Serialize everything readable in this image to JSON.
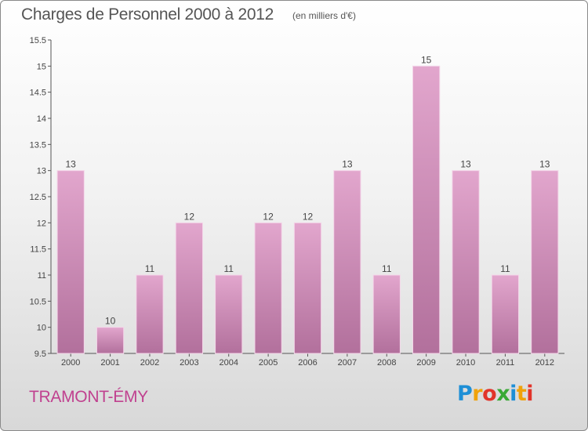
{
  "header": {
    "title": "Charges de Personnel 2000 à 2012",
    "subtitle": "(en milliers d'€)"
  },
  "footer": {
    "place": "TRAMONT-ÉMY",
    "logo_letters": [
      "P",
      "r",
      "o",
      "x",
      "i",
      "t",
      "i"
    ]
  },
  "colors": {
    "bar_top": "#e2a6cd",
    "bar_bottom": "#b2709c",
    "bar_edge": "#f4d6e9",
    "place_text": "#c0418f"
  },
  "chart_data": {
    "type": "bar",
    "title": "Charges de Personnel 2000 à 2012",
    "subtitle": "(en milliers d'€)",
    "categories": [
      "2000",
      "2001",
      "2002",
      "2003",
      "2004",
      "2005",
      "2006",
      "2007",
      "2008",
      "2009",
      "2010",
      "2011",
      "2012"
    ],
    "values": [
      13,
      10,
      11,
      12,
      11,
      12,
      12,
      13,
      11,
      15,
      13,
      11,
      13
    ],
    "data_labels": [
      "13",
      "10",
      "11",
      "12",
      "11",
      "12",
      "12",
      "13",
      "11",
      "15",
      "13",
      "11",
      "13"
    ],
    "ylim": [
      9.5,
      15.5
    ],
    "yticks": [
      9.5,
      10,
      10.5,
      11,
      11.5,
      12,
      12.5,
      13,
      13.5,
      14,
      14.5,
      15,
      15.5
    ],
    "ytick_labels": [
      "9.5",
      "10",
      "10.5",
      "11",
      "11.5",
      "12",
      "12.5",
      "13",
      "13.5",
      "14",
      "14.5",
      "15",
      "15.5"
    ],
    "xlabel": "",
    "ylabel": "",
    "grid": false,
    "legend": "none"
  }
}
